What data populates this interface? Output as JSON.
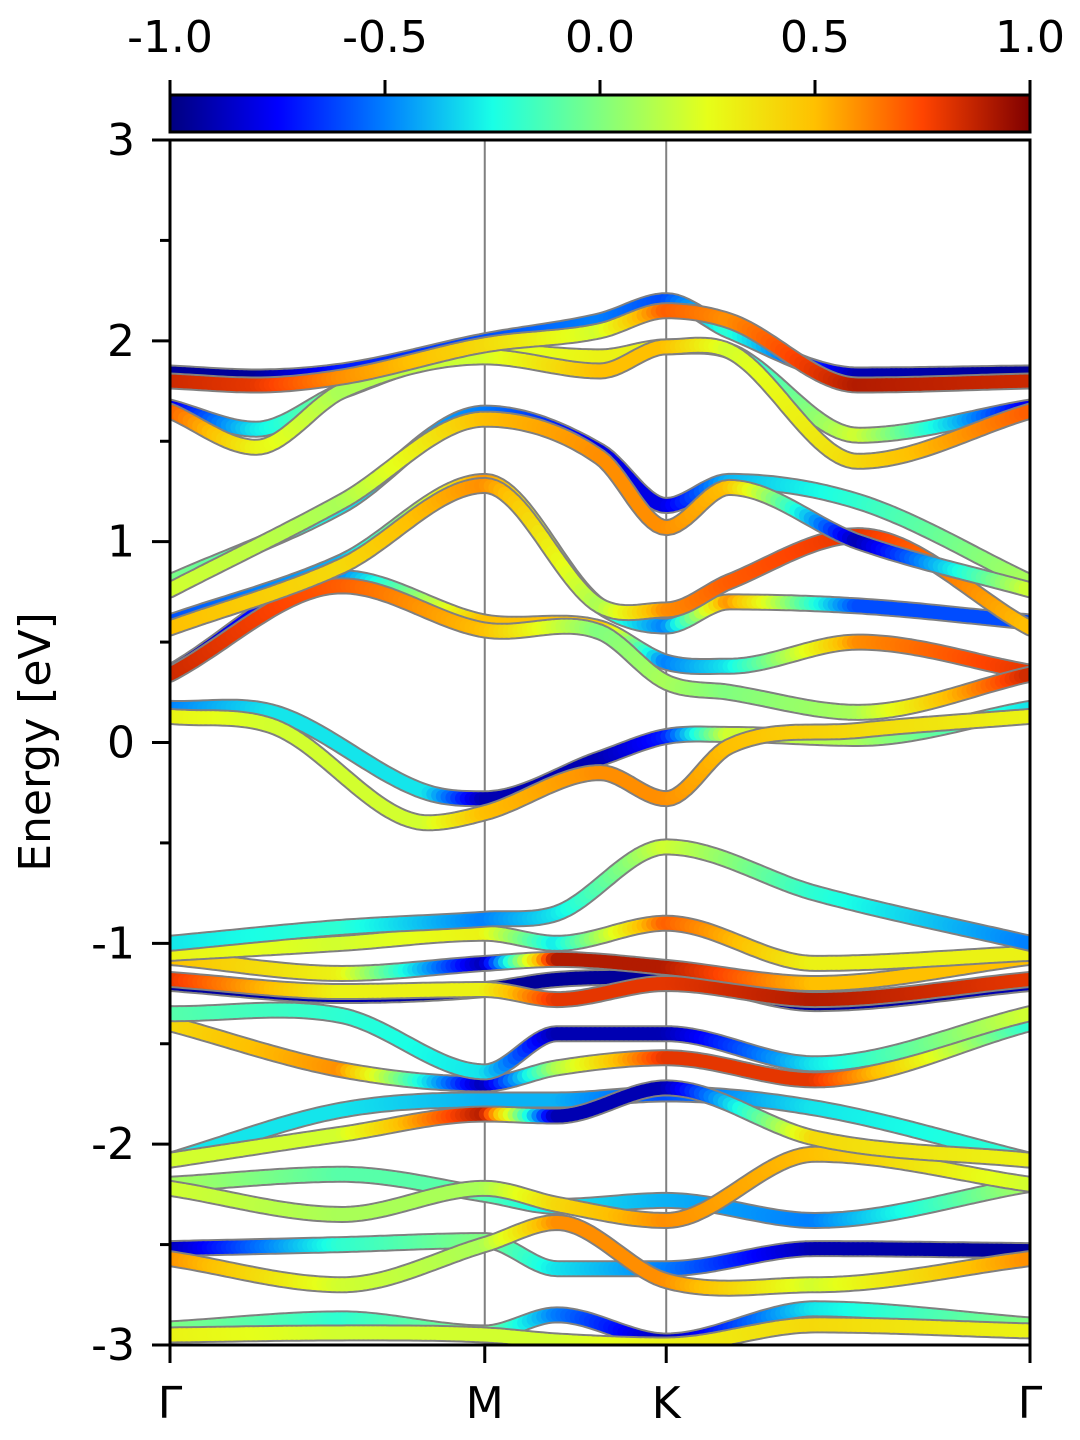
{
  "chart_data": {
    "type": "line",
    "ylabel": "Energy [eV]",
    "xlabel": "",
    "ylim": [
      -3,
      3
    ],
    "y_ticks": [
      3,
      2,
      1,
      0,
      -1,
      -2,
      -3
    ],
    "y_tick_labels": [
      "3",
      "2",
      "1",
      "0",
      "-1",
      "-2",
      "-3"
    ],
    "y_minor_ticks": [
      2.5,
      1.5,
      0.5,
      -0.5,
      -1.5,
      -2.5
    ],
    "xlim": [
      0,
      1
    ],
    "k_points": [
      {
        "label": "Γ",
        "x": 0.0
      },
      {
        "label": "M",
        "x": 0.366
      },
      {
        "label": "K",
        "x": 0.577
      },
      {
        "label": "Γ",
        "x": 1.0
      }
    ],
    "colorbar": {
      "colormap": "jet",
      "range": [
        -1.0,
        1.0
      ],
      "ticks": [
        -1.0,
        -0.5,
        0.0,
        0.5,
        1.0
      ],
      "tick_labels": [
        "-1.0",
        "-0.5",
        "0.0",
        "0.5",
        "1.0"
      ],
      "position": "top"
    },
    "colormap_stops": [
      "#00007f",
      "#0000ff",
      "#007fff",
      "#19ffe6",
      "#80ff80",
      "#e6ff19",
      "#ffc000",
      "#ff4400",
      "#7f0000"
    ],
    "line_outline_color": "#808080",
    "series": [
      {
        "x": [
          0,
          0.2,
          0.366,
          0.45,
          0.577,
          0.75,
          1.0
        ],
        "y": [
          -2.92,
          -2.87,
          -2.94,
          -2.85,
          -2.98,
          -2.82,
          -2.9
        ],
        "c": [
          0.0,
          -0.2,
          0.0,
          -0.5,
          -0.9,
          -0.3,
          0.0
        ]
      },
      {
        "x": [
          0,
          0.2,
          0.366,
          0.45,
          0.577,
          0.75,
          1.0
        ],
        "y": [
          -2.95,
          -2.94,
          -2.95,
          -2.98,
          -3.0,
          -2.9,
          -2.93
        ],
        "c": [
          0.3,
          0.2,
          0.2,
          0.2,
          0.3,
          0.4,
          0.3
        ]
      },
      {
        "x": [
          0,
          0.2,
          0.366,
          0.45,
          0.577,
          0.75,
          1.0
        ],
        "y": [
          -2.52,
          -2.5,
          -2.48,
          -2.62,
          -2.62,
          -2.52,
          -2.53
        ],
        "c": [
          -0.9,
          -0.2,
          0.0,
          -0.3,
          -0.5,
          -0.9,
          -0.95
        ]
      },
      {
        "x": [
          0,
          0.2,
          0.366,
          0.45,
          0.577,
          0.75,
          1.0
        ],
        "y": [
          -2.57,
          -2.7,
          -2.5,
          -2.39,
          -2.68,
          -2.7,
          -2.57
        ],
        "c": [
          0.6,
          0.2,
          0.1,
          0.6,
          0.6,
          0.2,
          0.6
        ]
      },
      {
        "x": [
          0,
          0.2,
          0.366,
          0.45,
          0.577,
          0.75,
          1.0
        ],
        "y": [
          -2.2,
          -2.15,
          -2.25,
          -2.31,
          -2.28,
          -2.38,
          -2.2
        ],
        "c": [
          0.1,
          -0.1,
          -0.1,
          -0.3,
          -0.4,
          -0.5,
          0.1
        ]
      },
      {
        "x": [
          0,
          0.2,
          0.366,
          0.45,
          0.577,
          0.75,
          1.0
        ],
        "y": [
          -2.22,
          -2.35,
          -2.22,
          -2.3,
          -2.38,
          -2.05,
          -2.2
        ],
        "c": [
          0.2,
          0.1,
          0.1,
          0.4,
          0.6,
          0.5,
          0.2
        ]
      },
      {
        "x": [
          0,
          0.2,
          0.366,
          0.45,
          0.577,
          0.75,
          1.0
        ],
        "y": [
          -2.08,
          -1.83,
          -1.78,
          -1.78,
          -1.75,
          -1.82,
          -2.08
        ],
        "c": [
          -0.3,
          -0.3,
          -0.4,
          -0.4,
          -0.6,
          -0.3,
          -0.2
        ]
      },
      {
        "x": [
          0,
          0.2,
          0.366,
          0.45,
          0.577,
          0.75,
          1.0
        ],
        "y": [
          -2.08,
          -1.95,
          -1.85,
          -1.86,
          -1.72,
          -1.97,
          -2.08
        ],
        "c": [
          0.2,
          0.2,
          0.9,
          -0.9,
          -0.9,
          0.4,
          0.3
        ]
      },
      {
        "x": [
          0,
          0.2,
          0.366,
          0.45,
          0.577,
          0.75,
          1.0
        ],
        "y": [
          -1.4,
          -1.63,
          -1.7,
          -1.62,
          -1.57,
          -1.68,
          -1.4
        ],
        "c": [
          0.4,
          0.6,
          -0.9,
          0.1,
          0.8,
          0.8,
          -0.2
        ]
      },
      {
        "x": [
          0,
          0.2,
          0.366,
          0.45,
          0.577,
          0.75,
          1.0
        ],
        "y": [
          -1.35,
          -1.36,
          -1.64,
          -1.45,
          -1.45,
          -1.6,
          -1.35
        ],
        "c": [
          -0.1,
          -0.2,
          -0.3,
          -0.9,
          -0.9,
          -0.3,
          0.2
        ]
      },
      {
        "x": [
          0,
          0.2,
          0.366,
          0.45,
          0.577,
          0.75,
          1.0
        ],
        "y": [
          -1.2,
          -1.26,
          -1.23,
          -1.18,
          -1.17,
          -1.3,
          -1.2
        ],
        "c": [
          -0.95,
          -0.9,
          -0.95,
          -0.95,
          -0.95,
          -0.95,
          -0.9
        ]
      },
      {
        "x": [
          0,
          0.2,
          0.366,
          0.45,
          0.577,
          0.75,
          1.0
        ],
        "y": [
          -1.18,
          -1.24,
          -1.23,
          -1.28,
          -1.2,
          -1.28,
          -1.18
        ],
        "c": [
          0.8,
          0.3,
          0.3,
          0.8,
          0.8,
          0.9,
          0.8
        ]
      },
      {
        "x": [
          0,
          0.2,
          0.366,
          0.45,
          0.577,
          0.75,
          1.0
        ],
        "y": [
          -1.07,
          -1.15,
          -1.1,
          -1.08,
          -1.12,
          -1.2,
          -1.07
        ],
        "c": [
          0.5,
          0.3,
          -0.9,
          0.9,
          0.9,
          0.5,
          0.5
        ]
      },
      {
        "x": [
          0,
          0.2,
          0.366,
          0.45,
          0.577,
          0.75,
          1.0
        ],
        "y": [
          -1.05,
          -1.0,
          -0.95,
          -1.0,
          -0.9,
          -1.1,
          -1.05
        ],
        "c": [
          0.3,
          0.2,
          0.3,
          -0.3,
          0.7,
          0.3,
          0.3
        ]
      },
      {
        "x": [
          0,
          0.2,
          0.366,
          0.45,
          0.577,
          0.75,
          1.0
        ],
        "y": [
          -1.0,
          -0.92,
          -0.88,
          -0.85,
          -0.52,
          -0.75,
          -1.0
        ],
        "c": [
          -0.3,
          -0.2,
          -0.5,
          -0.3,
          0.2,
          -0.2,
          -0.5
        ]
      },
      {
        "x": [
          0,
          0.12,
          0.3,
          0.366,
          0.5,
          0.577,
          0.65,
          0.8,
          1.0
        ],
        "y": [
          0.17,
          0.15,
          -0.25,
          -0.28,
          -0.08,
          0.03,
          0.04,
          0.02,
          0.17
        ],
        "c": [
          -0.5,
          -0.3,
          -0.3,
          -0.9,
          -0.9,
          -0.7,
          0.2,
          0.1,
          -0.3
        ]
      },
      {
        "x": [
          0,
          0.12,
          0.3,
          0.366,
          0.5,
          0.577,
          0.65,
          0.8,
          1.0
        ],
        "y": [
          0.13,
          0.08,
          -0.4,
          -0.35,
          -0.15,
          -0.28,
          -0.02,
          0.06,
          0.13
        ],
        "c": [
          0.3,
          0.2,
          0.2,
          0.5,
          0.6,
          0.6,
          0.5,
          0.4,
          0.3
        ]
      },
      {
        "x": [
          0,
          0.2,
          0.366,
          0.5,
          0.577,
          0.65,
          0.8,
          1.0
        ],
        "y": [
          0.35,
          0.82,
          0.6,
          0.57,
          0.4,
          0.38,
          0.5,
          0.35
        ],
        "c": [
          -0.95,
          -0.5,
          0.5,
          0.5,
          -0.5,
          -0.3,
          0.6,
          0.8
        ]
      },
      {
        "x": [
          0,
          0.2,
          0.366,
          0.5,
          0.577,
          0.65,
          0.8,
          1.0
        ],
        "y": [
          0.34,
          0.78,
          0.56,
          0.55,
          0.3,
          0.25,
          0.15,
          0.34
        ],
        "c": [
          0.85,
          0.7,
          0.5,
          0.0,
          0.1,
          0.0,
          0.1,
          0.85
        ]
      },
      {
        "x": [
          0,
          0.2,
          0.366,
          0.5,
          0.577,
          0.65,
          0.8,
          1.0
        ],
        "y": [
          0.6,
          0.9,
          1.3,
          0.68,
          0.58,
          0.7,
          0.68,
          0.6
        ],
        "c": [
          -0.6,
          -0.4,
          0.6,
          -0.1,
          -0.5,
          0.6,
          -0.6,
          -0.6
        ]
      },
      {
        "x": [
          0,
          0.2,
          0.366,
          0.5,
          0.577,
          0.65,
          0.8,
          1.0
        ],
        "y": [
          0.57,
          0.88,
          1.28,
          0.68,
          0.66,
          0.8,
          1.03,
          0.57
        ],
        "c": [
          0.5,
          0.4,
          0.6,
          0.1,
          0.6,
          0.7,
          0.8,
          0.5
        ]
      },
      {
        "x": [
          0,
          0.2,
          0.366,
          0.5,
          0.577,
          0.65,
          0.8,
          1.0
        ],
        "y": [
          0.8,
          1.18,
          1.64,
          1.45,
          1.18,
          1.3,
          1.2,
          0.8
        ],
        "c": [
          0.0,
          -0.3,
          -0.5,
          -0.8,
          -0.8,
          -0.4,
          -0.2,
          0.1
        ]
      },
      {
        "x": [
          0,
          0.2,
          0.366,
          0.5,
          0.577,
          0.65,
          0.8,
          1.0
        ],
        "y": [
          0.76,
          1.2,
          1.61,
          1.42,
          1.07,
          1.27,
          1.0,
          0.76
        ],
        "c": [
          0.2,
          0.1,
          0.5,
          0.6,
          0.6,
          0.5,
          -0.9,
          0.2
        ]
      },
      {
        "x": [
          0,
          0.1,
          0.2,
          0.366,
          0.5,
          0.577,
          0.65,
          0.8,
          1.0
        ],
        "y": [
          1.67,
          1.56,
          1.75,
          1.95,
          1.92,
          1.97,
          1.95,
          1.53,
          1.67
        ],
        "c": [
          -0.8,
          -0.3,
          0.0,
          0.2,
          0.3,
          0.3,
          -0.3,
          0.2,
          -0.8
        ]
      },
      {
        "x": [
          0,
          0.1,
          0.2,
          0.366,
          0.5,
          0.577,
          0.65,
          0.8,
          1.0
        ],
        "y": [
          1.65,
          1.47,
          1.75,
          1.92,
          1.85,
          1.97,
          1.95,
          1.4,
          1.65
        ],
        "c": [
          0.7,
          0.3,
          0.1,
          0.2,
          0.5,
          0.5,
          0.2,
          0.4,
          0.7
        ]
      },
      {
        "x": [
          0,
          0.1,
          0.2,
          0.366,
          0.5,
          0.577,
          0.65,
          0.8,
          1.0
        ],
        "y": [
          1.84,
          1.82,
          1.85,
          2.0,
          2.1,
          2.2,
          2.05,
          1.83,
          1.84
        ],
        "c": [
          -0.95,
          -0.95,
          -0.7,
          -0.6,
          -0.5,
          -0.6,
          -0.2,
          -0.9,
          -0.95
        ]
      },
      {
        "x": [
          0,
          0.1,
          0.2,
          0.366,
          0.5,
          0.577,
          0.65,
          0.8,
          1.0
        ],
        "y": [
          1.8,
          1.78,
          1.82,
          1.98,
          2.05,
          2.15,
          2.1,
          1.78,
          1.8
        ],
        "c": [
          0.85,
          0.8,
          0.6,
          0.4,
          0.2,
          0.7,
          0.6,
          0.9,
          0.85
        ]
      }
    ]
  }
}
